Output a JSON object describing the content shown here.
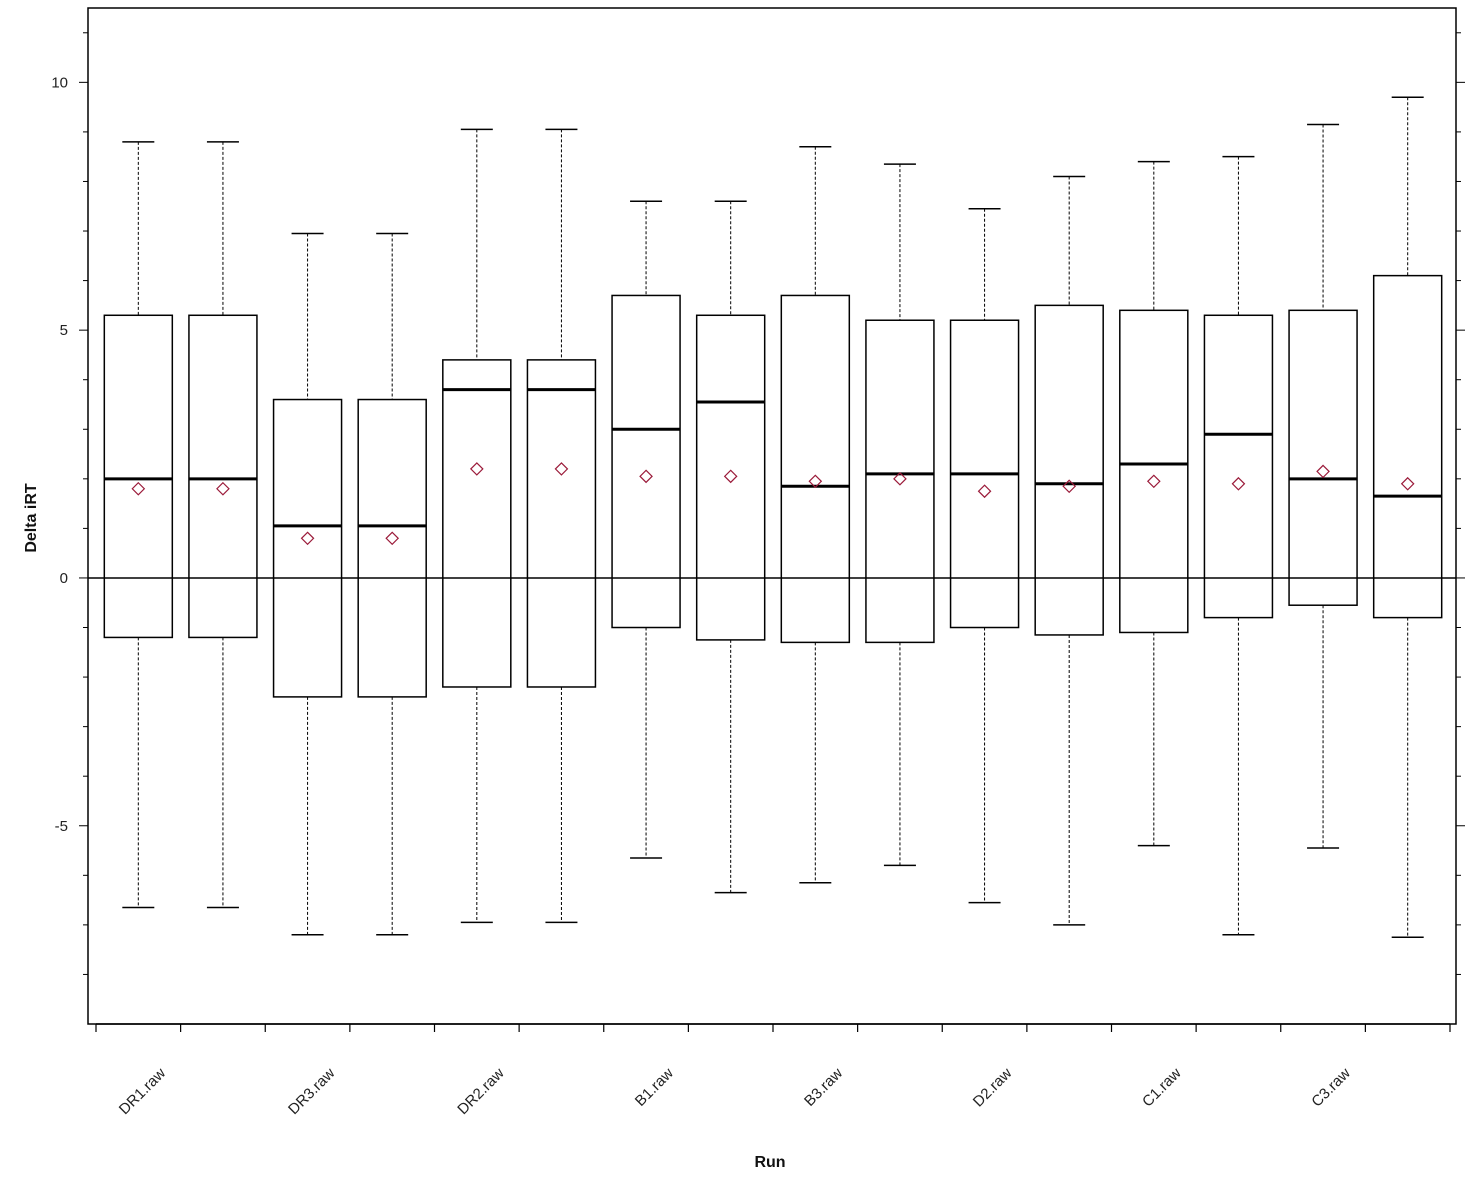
{
  "chart_data": {
    "type": "boxplot",
    "title": "",
    "xlabel": "Run",
    "ylabel": "Delta iRT",
    "ylim": [
      -9,
      11.5
    ],
    "yticks_major": [
      -5,
      0,
      5,
      10
    ],
    "yticks_minor": [
      -8,
      -7,
      -6,
      -4,
      -3,
      -2,
      -1,
      1,
      2,
      3,
      4,
      6,
      7,
      8,
      9,
      11
    ],
    "reference_line_y": 0,
    "grid": false,
    "legend": "none",
    "categories": [
      "DR1.raw",
      "",
      "DR3.raw",
      "",
      "DR2.raw",
      "",
      "B1.raw",
      "",
      "B3.raw",
      "",
      "D2.raw",
      "",
      "C1.raw",
      "",
      "C3.raw",
      ""
    ],
    "boxes": [
      {
        "category": "DR1.raw",
        "whisker_low": -6.65,
        "q1": -1.2,
        "median": 2.0,
        "q3": 5.3,
        "whisker_high": 8.8,
        "mean": 1.8
      },
      {
        "category": "",
        "whisker_low": -6.65,
        "q1": -1.2,
        "median": 2.0,
        "q3": 5.3,
        "whisker_high": 8.8,
        "mean": 1.8
      },
      {
        "category": "DR3.raw",
        "whisker_low": -7.2,
        "q1": -2.4,
        "median": 1.05,
        "q3": 3.6,
        "whisker_high": 6.95,
        "mean": 0.8
      },
      {
        "category": "",
        "whisker_low": -7.2,
        "q1": -2.4,
        "median": 1.05,
        "q3": 3.6,
        "whisker_high": 6.95,
        "mean": 0.8
      },
      {
        "category": "DR2.raw",
        "whisker_low": -6.95,
        "q1": -2.2,
        "median": 3.8,
        "q3": 4.4,
        "whisker_high": 9.05,
        "mean": 2.2
      },
      {
        "category": "",
        "whisker_low": -6.95,
        "q1": -2.2,
        "median": 3.8,
        "q3": 4.4,
        "whisker_high": 9.05,
        "mean": 2.2
      },
      {
        "category": "B1.raw",
        "whisker_low": -5.65,
        "q1": -1.0,
        "median": 3.0,
        "q3": 5.7,
        "whisker_high": 7.6,
        "mean": 2.05
      },
      {
        "category": "",
        "whisker_low": -6.35,
        "q1": -1.25,
        "median": 3.55,
        "q3": 5.3,
        "whisker_high": 7.6,
        "mean": 2.05
      },
      {
        "category": "B3.raw",
        "whisker_low": -6.15,
        "q1": -1.3,
        "median": 1.85,
        "q3": 5.7,
        "whisker_high": 8.7,
        "mean": 1.95
      },
      {
        "category": "",
        "whisker_low": -5.8,
        "q1": -1.3,
        "median": 2.1,
        "q3": 5.2,
        "whisker_high": 8.35,
        "mean": 2.0
      },
      {
        "category": "D2.raw",
        "whisker_low": -6.55,
        "q1": -1.0,
        "median": 2.1,
        "q3": 5.2,
        "whisker_high": 7.45,
        "mean": 1.75
      },
      {
        "category": "",
        "whisker_low": -7.0,
        "q1": -1.15,
        "median": 1.9,
        "q3": 5.5,
        "whisker_high": 8.1,
        "mean": 1.85
      },
      {
        "category": "C1.raw",
        "whisker_low": -5.4,
        "q1": -1.1,
        "median": 2.3,
        "q3": 5.4,
        "whisker_high": 8.4,
        "mean": 1.95
      },
      {
        "category": "",
        "whisker_low": -7.2,
        "q1": -0.8,
        "median": 2.9,
        "q3": 5.3,
        "whisker_high": 8.5,
        "mean": 1.9
      },
      {
        "category": "C3.raw",
        "whisker_low": -5.45,
        "q1": -0.55,
        "median": 2.0,
        "q3": 5.4,
        "whisker_high": 9.15,
        "mean": 2.15
      },
      {
        "category": "",
        "whisker_low": -7.25,
        "q1": -0.8,
        "median": 1.65,
        "q3": 6.1,
        "whisker_high": 9.7,
        "mean": 1.9
      }
    ],
    "colors": {
      "box": "#000000",
      "whisker": "#000000",
      "mean_marker": "#9b1b3a",
      "axis": "#000000"
    },
    "mean_marker_shape": "diamond"
  }
}
